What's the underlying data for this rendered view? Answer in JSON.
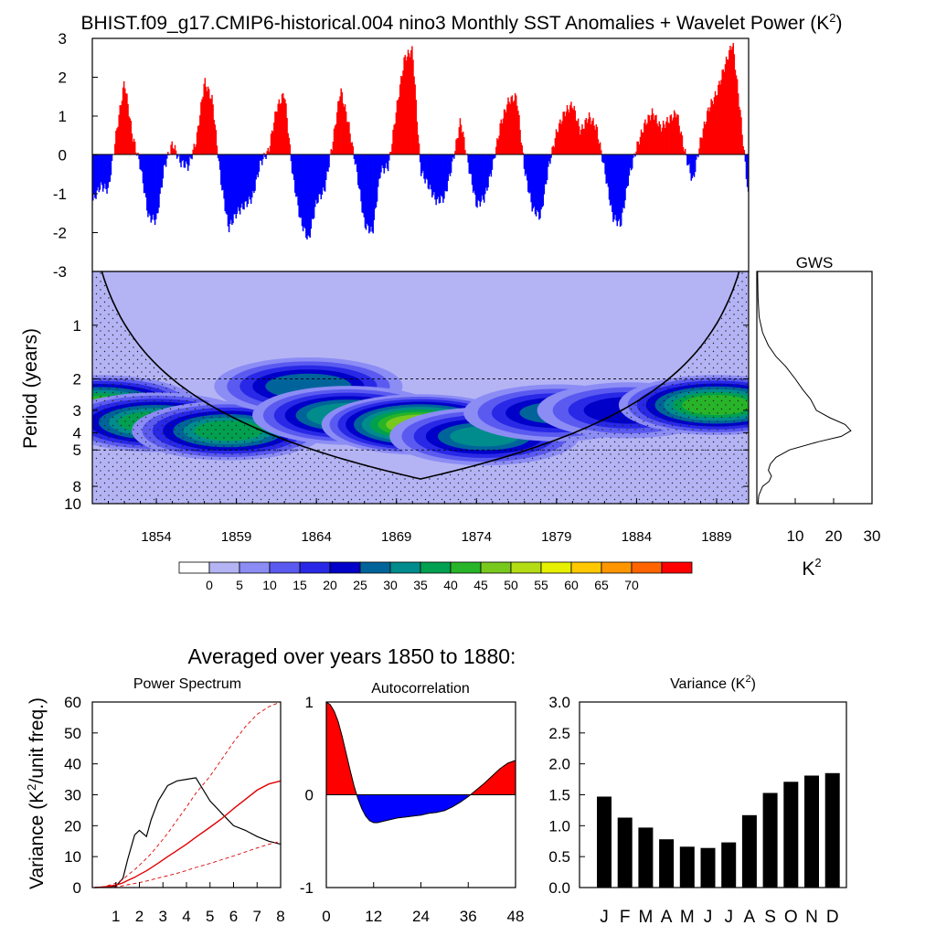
{
  "title": "BHIST.f09_g17.CMIP6-historical.004 nino3 Monthly SST Anomalies + Wavelet Power (K",
  "title_sup": "2",
  "title_close": ")",
  "colors": {
    "positive": "#ff0000",
    "negative": "#0000ff",
    "contour_levels": [
      "#ffffff",
      "#b4b4f5",
      "#8c8cf5",
      "#5a5af0",
      "#2828e6",
      "#0000c8",
      "#00649b",
      "#008c8c",
      "#00a050",
      "#28b428",
      "#78c81e",
      "#b4dc14",
      "#e6f000",
      "#ffc800",
      "#ff9600",
      "#ff6400",
      "#ff0000"
    ]
  },
  "timeseries": {
    "yticks": [
      "3",
      "2",
      "1",
      "0",
      "-1",
      "-2",
      "-3"
    ]
  },
  "wavelet": {
    "ylabel": "Period (years)",
    "yticks": [
      "1",
      "2",
      "3",
      "4",
      "5",
      "8",
      "10"
    ],
    "xticks": [
      "1854",
      "1859",
      "1864",
      "1869",
      "1874",
      "1879",
      "1884",
      "1889"
    ]
  },
  "gws": {
    "title": "GWS",
    "xticks": [
      "10",
      "20",
      "30"
    ],
    "xlabel": "K",
    "xlabel_sup": "2"
  },
  "colorbar": {
    "labels": [
      "0",
      "5",
      "10",
      "15",
      "20",
      "25",
      "30",
      "35",
      "40",
      "45",
      "50",
      "55",
      "60",
      "65",
      "70"
    ]
  },
  "subtitle": "Averaged over years 1850 to 1880:",
  "shared_ylabel": "Variance (K",
  "shared_ylabel_sup": "2",
  "shared_ylabel_close": "/unit freq.)",
  "chart_data": [
    {
      "type": "area",
      "title": "Nino3 Monthly SST Anomalies",
      "ylim": [
        -3,
        3
      ],
      "xrange": [
        1850,
        1891
      ],
      "x": [
        1850.0,
        1850.5,
        1851.0,
        1851.5,
        1852.0,
        1852.5,
        1853.0,
        1853.5,
        1854.0,
        1854.5,
        1855.0,
        1855.5,
        1856.0,
        1856.5,
        1857.0,
        1857.5,
        1858.0,
        1858.5,
        1859.0,
        1859.5,
        1860.0,
        1860.5,
        1861.0,
        1861.5,
        1862.0,
        1862.5,
        1863.0,
        1863.5,
        1864.0,
        1864.5,
        1865.0,
        1865.5,
        1866.0,
        1866.5,
        1867.0,
        1867.5,
        1868.0,
        1868.5,
        1869.0,
        1869.5,
        1870.0,
        1870.5,
        1871.0,
        1871.5,
        1872.0,
        1872.5,
        1873.0,
        1873.5,
        1874.0,
        1874.5,
        1875.0,
        1875.5,
        1876.0,
        1876.5,
        1877.0,
        1877.5,
        1878.0,
        1878.5,
        1879.0,
        1879.5,
        1880.0,
        1880.5,
        1881.0,
        1881.5,
        1882.0,
        1882.5,
        1883.0,
        1883.5,
        1884.0,
        1884.5,
        1885.0,
        1885.5,
        1886.0,
        1886.5,
        1887.0,
        1887.5,
        1888.0,
        1888.5,
        1889.0,
        1889.5,
        1890.0,
        1890.5,
        1891.0
      ],
      "values": [
        -1.2,
        -0.8,
        -0.9,
        0.6,
        1.9,
        0.5,
        -0.3,
        -1.6,
        -1.7,
        -0.3,
        0.3,
        -0.2,
        -0.3,
        0.4,
        1.9,
        1.4,
        -0.6,
        -1.9,
        -1.5,
        -1.3,
        -1.1,
        -0.2,
        0.1,
        1.2,
        1.6,
        -0.5,
        -1.7,
        -2.2,
        -1.2,
        -0.9,
        0.3,
        1.7,
        0.8,
        -0.4,
        -1.8,
        -2.0,
        -0.4,
        -0.3,
        1.2,
        2.5,
        2.7,
        -0.4,
        -0.8,
        -1.2,
        -1.1,
        -0.2,
        0.9,
        -0.3,
        -1.3,
        -1.1,
        -0.3,
        0.8,
        1.4,
        1.5,
        -0.4,
        -1.4,
        -1.6,
        -0.3,
        0.6,
        1.1,
        1.3,
        0.6,
        1.0,
        0.7,
        -0.4,
        -1.6,
        -1.8,
        -0.6,
        0.2,
        0.8,
        1.1,
        0.7,
        0.9,
        1.1,
        0.1,
        -0.7,
        0.4,
        1.2,
        1.6,
        2.3,
        2.9,
        1.0,
        -1.2
      ]
    },
    {
      "type": "heatmap",
      "title": "Wavelet Power",
      "ylabel": "Period (years)",
      "ylog": true,
      "ylim": [
        0.5,
        10
      ],
      "xrange": [
        1850,
        1891
      ],
      "levels": [
        0,
        5,
        10,
        15,
        20,
        25,
        30,
        35,
        40,
        45,
        50,
        55,
        60,
        65,
        70
      ],
      "blobs": [
        {
          "year": 1850.5,
          "period": 2.8,
          "peak": 40
        },
        {
          "year": 1854.0,
          "period": 3.5,
          "peak": 38
        },
        {
          "year": 1858.5,
          "period": 3.9,
          "peak": 36
        },
        {
          "year": 1863.5,
          "period": 2.2,
          "peak": 28
        },
        {
          "year": 1866.0,
          "period": 3.2,
          "peak": 34
        },
        {
          "year": 1870.5,
          "period": 3.6,
          "peak": 48
        },
        {
          "year": 1874.5,
          "period": 4.2,
          "peak": 30
        },
        {
          "year": 1879.0,
          "period": 3.1,
          "peak": 25
        },
        {
          "year": 1883.5,
          "period": 3.0,
          "peak": 22
        },
        {
          "year": 1889.0,
          "period": 2.8,
          "peak": 42
        }
      ]
    },
    {
      "type": "line",
      "title": "GWS",
      "xlabel": "K2",
      "xlim": [
        0,
        30
      ],
      "ylog": true,
      "period": [
        0.5,
        0.7,
        0.9,
        1.1,
        1.3,
        1.5,
        1.7,
        2.0,
        2.3,
        2.6,
        3.0,
        3.3,
        3.6,
        3.9,
        4.2,
        4.5,
        5.0,
        5.5,
        6.0,
        6.5,
        7.0,
        7.5,
        8.0,
        9.0,
        10.0
      ],
      "values": [
        0.2,
        0.3,
        0.6,
        1.5,
        3.0,
        5.0,
        7.5,
        10.0,
        12.0,
        14.0,
        15.5,
        19.0,
        23.0,
        24.5,
        22.0,
        16.0,
        8.5,
        5.0,
        3.5,
        3.0,
        3.8,
        3.2,
        1.5,
        0.5,
        0.3
      ]
    },
    {
      "type": "line",
      "title": "Power Spectrum",
      "ylabel": "Variance (K2/unit freq.)",
      "xlim": [
        0,
        8
      ],
      "ylim": [
        0,
        60
      ],
      "x": [
        0.1,
        0.5,
        1.0,
        1.3,
        1.5,
        1.8,
        2.0,
        2.3,
        2.5,
        2.8,
        3.2,
        3.6,
        4.0,
        4.4,
        5.0,
        5.5,
        6.0,
        6.5,
        7.0,
        7.5,
        8.0
      ],
      "series": [
        {
          "values": [
            0.0,
            0.1,
            0.5,
            3.0,
            9.0,
            17.0,
            18.5,
            16.5,
            22.0,
            28.0,
            33.0,
            34.5,
            35.0,
            35.5,
            28.0,
            24.0,
            20.0,
            18.5,
            16.5,
            15.0,
            14.0
          ]
        },
        {
          "values": [
            0.0,
            0.2,
            0.8,
            1.5,
            2.3,
            3.3,
            4.2,
            5.4,
            6.4,
            7.9,
            10.0,
            12.0,
            14.0,
            16.3,
            19.5,
            22.3,
            25.5,
            28.5,
            31.5,
            33.5,
            34.5
          ]
        },
        {
          "values": [
            0.0,
            0.3,
            1.4,
            2.6,
            4.0,
            5.8,
            7.2,
            9.4,
            11.0,
            13.7,
            17.5,
            21.8,
            26.0,
            30.5,
            36.0,
            41.5,
            47.0,
            52.0,
            56.0,
            58.5,
            60.0
          ]
        },
        {
          "values": [
            0.0,
            0.1,
            0.3,
            0.6,
            0.9,
            1.3,
            1.6,
            2.1,
            2.5,
            3.1,
            3.8,
            4.6,
            5.5,
            6.5,
            7.8,
            9.0,
            10.2,
            11.5,
            12.8,
            14.0,
            15.0
          ]
        }
      ]
    },
    {
      "type": "area",
      "title": "Autocorrelation",
      "xlim": [
        0,
        48
      ],
      "ylim": [
        -1,
        1
      ],
      "x": [
        0,
        1,
        2,
        3,
        4,
        5,
        6,
        7,
        8,
        9,
        10,
        11,
        12,
        13,
        14,
        15,
        16,
        18,
        20,
        22,
        24,
        26,
        28,
        30,
        32,
        34,
        36,
        38,
        40,
        42,
        44,
        46,
        48
      ],
      "values": [
        1.0,
        0.97,
        0.9,
        0.79,
        0.63,
        0.45,
        0.27,
        0.1,
        -0.04,
        -0.15,
        -0.23,
        -0.28,
        -0.3,
        -0.3,
        -0.29,
        -0.28,
        -0.27,
        -0.25,
        -0.24,
        -0.23,
        -0.22,
        -0.2,
        -0.19,
        -0.17,
        -0.13,
        -0.08,
        -0.02,
        0.05,
        0.12,
        0.2,
        0.28,
        0.34,
        0.37
      ]
    },
    {
      "type": "bar",
      "title": "Variance (K2)",
      "ylim": [
        0,
        3
      ],
      "categories": [
        "J",
        "F",
        "M",
        "A",
        "M",
        "J",
        "J",
        "A",
        "S",
        "O",
        "N",
        "D"
      ],
      "values": [
        1.47,
        1.13,
        0.97,
        0.78,
        0.66,
        0.64,
        0.73,
        1.17,
        1.53,
        1.71,
        1.81,
        1.85
      ]
    }
  ]
}
